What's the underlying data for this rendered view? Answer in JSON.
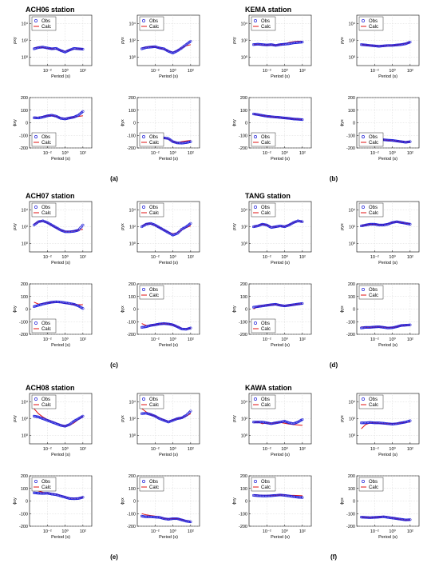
{
  "colors": {
    "obs": "#1f1fd9",
    "calc": "#e01010",
    "axis": "#000000",
    "grid": "#cfcfcf"
  },
  "panels": [
    {
      "label": "(a)",
      "station": "ACH06 station"
    },
    {
      "label": "(b)",
      "station": "KEMA station"
    },
    {
      "label": "(c)",
      "station": "ACH07 station"
    },
    {
      "label": "(d)",
      "station": "TANG station"
    },
    {
      "label": "(e)",
      "station": "ACH08 station"
    },
    {
      "label": "(f)",
      "station": "KAWA station"
    }
  ],
  "chart_data": {
    "type": "line",
    "legend": [
      "Obs",
      "Calc"
    ],
    "xlabel": "Period (s)",
    "ylabel_rho": [
      "ρxy",
      "ρyx"
    ],
    "ylabel_phi": [
      "ϕxy",
      "ϕyx"
    ],
    "x_ticks": [
      "10⁻²",
      "10⁰",
      "10²"
    ],
    "rho_y_ticks": [
      "10⁴",
      "10²",
      "10⁰"
    ],
    "phi_y_ticks": [
      "200",
      "100",
      "0",
      "-100",
      "-200"
    ],
    "x_log_range": [
      -4,
      3
    ],
    "rho_log_range": [
      -1,
      5
    ],
    "phi_range": [
      -200,
      200
    ],
    "curves": [
      {
        "panel": "(a)",
        "component": "rho_xy",
        "x": [
          -3.5,
          -3,
          -2.5,
          -2,
          -1.5,
          -1,
          -0.5,
          0,
          0.5,
          1,
          1.5,
          2
        ],
        "obs": [
          1.0,
          1.15,
          1.2,
          1.1,
          1.0,
          1.05,
          0.8,
          0.6,
          0.85,
          1.05,
          1.0,
          0.95
        ],
        "calc": [
          1.1,
          1.2,
          1.15,
          1.05,
          1.0,
          0.95,
          0.8,
          0.7,
          0.85,
          0.95,
          1.0,
          1.0
        ]
      },
      {
        "panel": "(a)",
        "component": "rho_yx",
        "x": [
          -3.5,
          -3,
          -2.5,
          -2,
          -1.5,
          -1,
          -0.5,
          0,
          0.5,
          1,
          1.5,
          2
        ],
        "obs": [
          1.0,
          1.15,
          1.2,
          1.25,
          1.1,
          1.0,
          0.7,
          0.5,
          0.75,
          1.1,
          1.5,
          1.9
        ],
        "calc": [
          1.1,
          1.2,
          1.25,
          1.2,
          1.1,
          0.95,
          0.75,
          0.6,
          0.8,
          1.1,
          1.35,
          1.5
        ]
      },
      {
        "panel": "(a)",
        "component": "phi_xy",
        "x": [
          -3.5,
          -3,
          -2.5,
          -2,
          -1.5,
          -1,
          -0.5,
          0,
          0.5,
          1,
          1.5,
          2
        ],
        "obs": [
          40,
          38,
          45,
          55,
          60,
          52,
          35,
          30,
          38,
          45,
          60,
          90
        ],
        "calc": [
          42,
          45,
          50,
          55,
          58,
          50,
          40,
          35,
          40,
          45,
          50,
          55
        ]
      },
      {
        "panel": "(a)",
        "component": "phi_yx",
        "x": [
          -3.5,
          -3,
          -2.5,
          -2,
          -1.5,
          -1,
          -0.5,
          0,
          0.5,
          1,
          1.5,
          2
        ],
        "obs": [
          -145,
          -140,
          -135,
          -130,
          -125,
          -120,
          -125,
          -150,
          -160,
          -162,
          -158,
          -150
        ],
        "calc": [
          -145,
          -142,
          -138,
          -132,
          -126,
          -122,
          -130,
          -150,
          -158,
          -150,
          -145,
          -140
        ]
      },
      {
        "panel": "(b)",
        "component": "rho_xy",
        "x": [
          -3.5,
          -3,
          -2.5,
          -2,
          -1.5,
          -1,
          -0.5,
          0,
          0.5,
          1,
          1.5,
          2
        ],
        "obs": [
          1.5,
          1.55,
          1.5,
          1.45,
          1.5,
          1.4,
          1.5,
          1.55,
          1.6,
          1.7,
          1.75,
          1.8
        ],
        "calc": [
          1.5,
          1.5,
          1.45,
          1.45,
          1.45,
          1.45,
          1.5,
          1.6,
          1.75,
          1.85,
          1.9,
          1.9
        ]
      },
      {
        "panel": "(b)",
        "component": "rho_yx",
        "x": [
          -3.5,
          -3,
          -2.5,
          -2,
          -1.5,
          -1,
          -0.5,
          0,
          0.5,
          1,
          1.5,
          2
        ],
        "obs": [
          1.5,
          1.45,
          1.4,
          1.35,
          1.3,
          1.35,
          1.4,
          1.4,
          1.45,
          1.5,
          1.6,
          1.8
        ],
        "calc": [
          1.5,
          1.45,
          1.4,
          1.35,
          1.35,
          1.35,
          1.35,
          1.4,
          1.45,
          1.55,
          1.65,
          1.75
        ]
      },
      {
        "panel": "(b)",
        "component": "phi_xy",
        "x": [
          -3.5,
          -3,
          -2.5,
          -2,
          -1.5,
          -1,
          -0.5,
          0,
          0.5,
          1,
          1.5,
          2
        ],
        "obs": [
          70,
          65,
          58,
          52,
          48,
          45,
          42,
          38,
          35,
          30,
          28,
          25
        ],
        "calc": [
          68,
          62,
          57,
          52,
          48,
          44,
          40,
          36,
          33,
          30,
          28,
          26
        ]
      },
      {
        "panel": "(b)",
        "component": "phi_yx",
        "x": [
          -3.5,
          -3,
          -2.5,
          -2,
          -1.5,
          -1,
          -0.5,
          0,
          0.5,
          1,
          1.5,
          2
        ],
        "obs": [
          -110,
          -120,
          -125,
          -130,
          -132,
          -135,
          -138,
          -140,
          -145,
          -150,
          -155,
          -150
        ],
        "calc": [
          -112,
          -120,
          -126,
          -130,
          -133,
          -136,
          -139,
          -142,
          -146,
          -150,
          -152,
          -152
        ]
      },
      {
        "panel": "(c)",
        "component": "rho_xy",
        "x": [
          -3.5,
          -3,
          -2.5,
          -2,
          -1.5,
          -1,
          -0.5,
          0,
          0.5,
          1,
          1.5,
          2
        ],
        "obs": [
          2.2,
          2.6,
          2.7,
          2.5,
          2.2,
          1.9,
          1.6,
          1.4,
          1.4,
          1.45,
          1.6,
          2.2
        ],
        "calc": [
          2.3,
          2.6,
          2.65,
          2.45,
          2.15,
          1.85,
          1.6,
          1.45,
          1.45,
          1.5,
          1.6,
          1.7
        ]
      },
      {
        "panel": "(c)",
        "component": "rho_yx",
        "x": [
          -3.5,
          -3,
          -2.5,
          -2,
          -1.5,
          -1,
          -0.5,
          0,
          0.5,
          1,
          1.5,
          2
        ],
        "obs": [
          2.0,
          2.3,
          2.4,
          2.2,
          1.9,
          1.6,
          1.3,
          1.0,
          1.2,
          1.7,
          2.0,
          2.4
        ],
        "calc": [
          2.1,
          2.35,
          2.35,
          2.15,
          1.9,
          1.6,
          1.35,
          1.15,
          1.3,
          1.6,
          1.9,
          2.1
        ]
      },
      {
        "panel": "(c)",
        "component": "phi_xy",
        "x": [
          -3.5,
          -3,
          -2.5,
          -2,
          -1.5,
          -1,
          -0.5,
          0,
          0.5,
          1,
          1.5,
          2
        ],
        "obs": [
          20,
          30,
          40,
          48,
          55,
          58,
          56,
          50,
          45,
          38,
          25,
          5
        ],
        "calc": [
          55,
          40,
          45,
          50,
          52,
          52,
          50,
          45,
          40,
          38,
          35,
          35
        ]
      },
      {
        "panel": "(c)",
        "component": "phi_yx",
        "x": [
          -3.5,
          -3,
          -2.5,
          -2,
          -1.5,
          -1,
          -0.5,
          0,
          0.5,
          1,
          1.5,
          2
        ],
        "obs": [
          -145,
          -140,
          -130,
          -125,
          -118,
          -115,
          -118,
          -125,
          -140,
          -158,
          -160,
          -150
        ],
        "calc": [
          -115,
          -130,
          -128,
          -122,
          -118,
          -116,
          -118,
          -125,
          -140,
          -152,
          -155,
          -152
        ]
      },
      {
        "panel": "(d)",
        "component": "rho_xy",
        "x": [
          -3.5,
          -3,
          -2.5,
          -2,
          -1.5,
          -1,
          -0.5,
          0,
          0.5,
          1,
          1.5,
          2
        ],
        "obs": [
          2.0,
          2.1,
          2.3,
          2.2,
          1.9,
          2.0,
          2.1,
          2.0,
          2.2,
          2.5,
          2.7,
          2.6
        ],
        "calc": [
          2.0,
          2.2,
          2.3,
          2.2,
          2.0,
          1.95,
          2.0,
          2.05,
          2.25,
          2.5,
          2.6,
          2.6
        ]
      },
      {
        "panel": "(d)",
        "component": "rho_yx",
        "x": [
          -3.5,
          -3,
          -2.5,
          -2,
          -1.5,
          -1,
          -0.5,
          0,
          0.5,
          1,
          1.5,
          2
        ],
        "obs": [
          2.1,
          2.2,
          2.3,
          2.3,
          2.2,
          2.2,
          2.3,
          2.5,
          2.6,
          2.5,
          2.4,
          2.3
        ],
        "calc": [
          2.1,
          2.2,
          2.3,
          2.3,
          2.25,
          2.25,
          2.35,
          2.5,
          2.55,
          2.5,
          2.4,
          2.35
        ]
      },
      {
        "panel": "(d)",
        "component": "phi_xy",
        "x": [
          -3.5,
          -3,
          -2.5,
          -2,
          -1.5,
          -1,
          -0.5,
          0,
          0.5,
          1,
          1.5,
          2
        ],
        "obs": [
          15,
          20,
          25,
          30,
          35,
          38,
          30,
          25,
          30,
          35,
          40,
          45
        ],
        "calc": [
          0,
          20,
          28,
          32,
          35,
          36,
          32,
          28,
          30,
          35,
          40,
          42
        ]
      },
      {
        "panel": "(d)",
        "component": "phi_yx",
        "x": [
          -3.5,
          -3,
          -2.5,
          -2,
          -1.5,
          -1,
          -0.5,
          0,
          0.5,
          1,
          1.5,
          2
        ],
        "obs": [
          -150,
          -145,
          -145,
          -142,
          -140,
          -145,
          -150,
          -148,
          -140,
          -130,
          -128,
          -125
        ],
        "calc": [
          -140,
          -145,
          -145,
          -143,
          -141,
          -143,
          -148,
          -146,
          -140,
          -132,
          -130,
          -128
        ]
      },
      {
        "panel": "(e)",
        "component": "rho_xy",
        "x": [
          -3.5,
          -3,
          -2.5,
          -2,
          -1.5,
          -1,
          -0.5,
          0,
          0.5,
          1,
          1.5,
          2
        ],
        "obs": [
          2.3,
          2.2,
          2.0,
          1.8,
          1.6,
          1.4,
          1.2,
          1.1,
          1.3,
          1.7,
          2.0,
          2.3
        ],
        "calc": [
          3.2,
          2.6,
          2.2,
          1.9,
          1.7,
          1.5,
          1.3,
          1.1,
          1.2,
          1.5,
          1.9,
          2.3
        ]
      },
      {
        "panel": "(e)",
        "component": "rho_yx",
        "x": [
          -3.5,
          -3,
          -2.5,
          -2,
          -1.5,
          -1,
          -0.5,
          0,
          0.5,
          1,
          1.5,
          2
        ],
        "obs": [
          2.6,
          2.65,
          2.5,
          2.3,
          2.0,
          1.8,
          1.6,
          1.8,
          2.0,
          2.1,
          2.4,
          2.9
        ],
        "calc": [
          3.2,
          2.8,
          2.5,
          2.3,
          2.1,
          1.85,
          1.7,
          1.85,
          2.0,
          2.1,
          2.3,
          2.6
        ]
      },
      {
        "panel": "(e)",
        "component": "phi_xy",
        "x": [
          -3.5,
          -3,
          -2.5,
          -2,
          -1.5,
          -1,
          -0.5,
          0,
          0.5,
          1,
          1.5,
          2
        ],
        "obs": [
          65,
          62,
          60,
          62,
          55,
          50,
          40,
          30,
          20,
          18,
          20,
          30
        ],
        "calc": [
          90,
          80,
          70,
          65,
          60,
          55,
          45,
          35,
          25,
          22,
          25,
          30
        ]
      },
      {
        "panel": "(e)",
        "component": "phi_yx",
        "x": [
          -3.5,
          -3,
          -2.5,
          -2,
          -1.5,
          -1,
          -0.5,
          0,
          0.5,
          1,
          1.5,
          2
        ],
        "obs": [
          -120,
          -125,
          -125,
          -128,
          -130,
          -140,
          -145,
          -140,
          -140,
          -150,
          -160,
          -165
        ],
        "calc": [
          -100,
          -110,
          -115,
          -120,
          -125,
          -138,
          -143,
          -140,
          -140,
          -148,
          -155,
          -160
        ]
      },
      {
        "panel": "(f)",
        "component": "rho_xy",
        "x": [
          -3.5,
          -3,
          -2.5,
          -2,
          -1.5,
          -1,
          -0.5,
          0,
          0.5,
          1,
          1.5,
          2
        ],
        "obs": [
          1.6,
          1.6,
          1.6,
          1.5,
          1.4,
          1.5,
          1.6,
          1.7,
          1.5,
          1.4,
          1.6,
          1.9
        ],
        "calc": [
          1.5,
          1.6,
          1.4,
          1.5,
          1.45,
          1.5,
          1.55,
          1.45,
          1.35,
          1.3,
          1.25,
          1.2
        ]
      },
      {
        "panel": "(f)",
        "component": "rho_yx",
        "x": [
          -3.5,
          -3,
          -2.5,
          -2,
          -1.5,
          -1,
          -0.5,
          0,
          0.5,
          1,
          1.5,
          2
        ],
        "obs": [
          1.5,
          1.5,
          1.55,
          1.5,
          1.5,
          1.45,
          1.4,
          1.35,
          1.4,
          1.5,
          1.6,
          1.75
        ],
        "calc": [
          0.8,
          1.3,
          1.5,
          1.5,
          1.45,
          1.4,
          1.4,
          1.4,
          1.45,
          1.5,
          1.55,
          1.6
        ]
      },
      {
        "panel": "(f)",
        "component": "phi_xy",
        "x": [
          -3.5,
          -3,
          -2.5,
          -2,
          -1.5,
          -1,
          -0.5,
          0,
          0.5,
          1,
          1.5,
          2
        ],
        "obs": [
          45,
          42,
          40,
          40,
          42,
          45,
          48,
          45,
          40,
          35,
          30,
          28
        ],
        "calc": [
          50,
          48,
          46,
          45,
          45,
          46,
          48,
          48,
          46,
          45,
          44,
          42
        ]
      },
      {
        "panel": "(f)",
        "component": "phi_yx",
        "x": [
          -3.5,
          -3,
          -2.5,
          -2,
          -1.5,
          -1,
          -0.5,
          0,
          0.5,
          1,
          1.5,
          2
        ],
        "obs": [
          -128,
          -130,
          -132,
          -130,
          -128,
          -125,
          -130,
          -135,
          -140,
          -145,
          -150,
          -148
        ],
        "calc": [
          -128,
          -130,
          -131,
          -130,
          -128,
          -120,
          -125,
          -132,
          -140,
          -148,
          -152,
          -150
        ]
      }
    ]
  }
}
